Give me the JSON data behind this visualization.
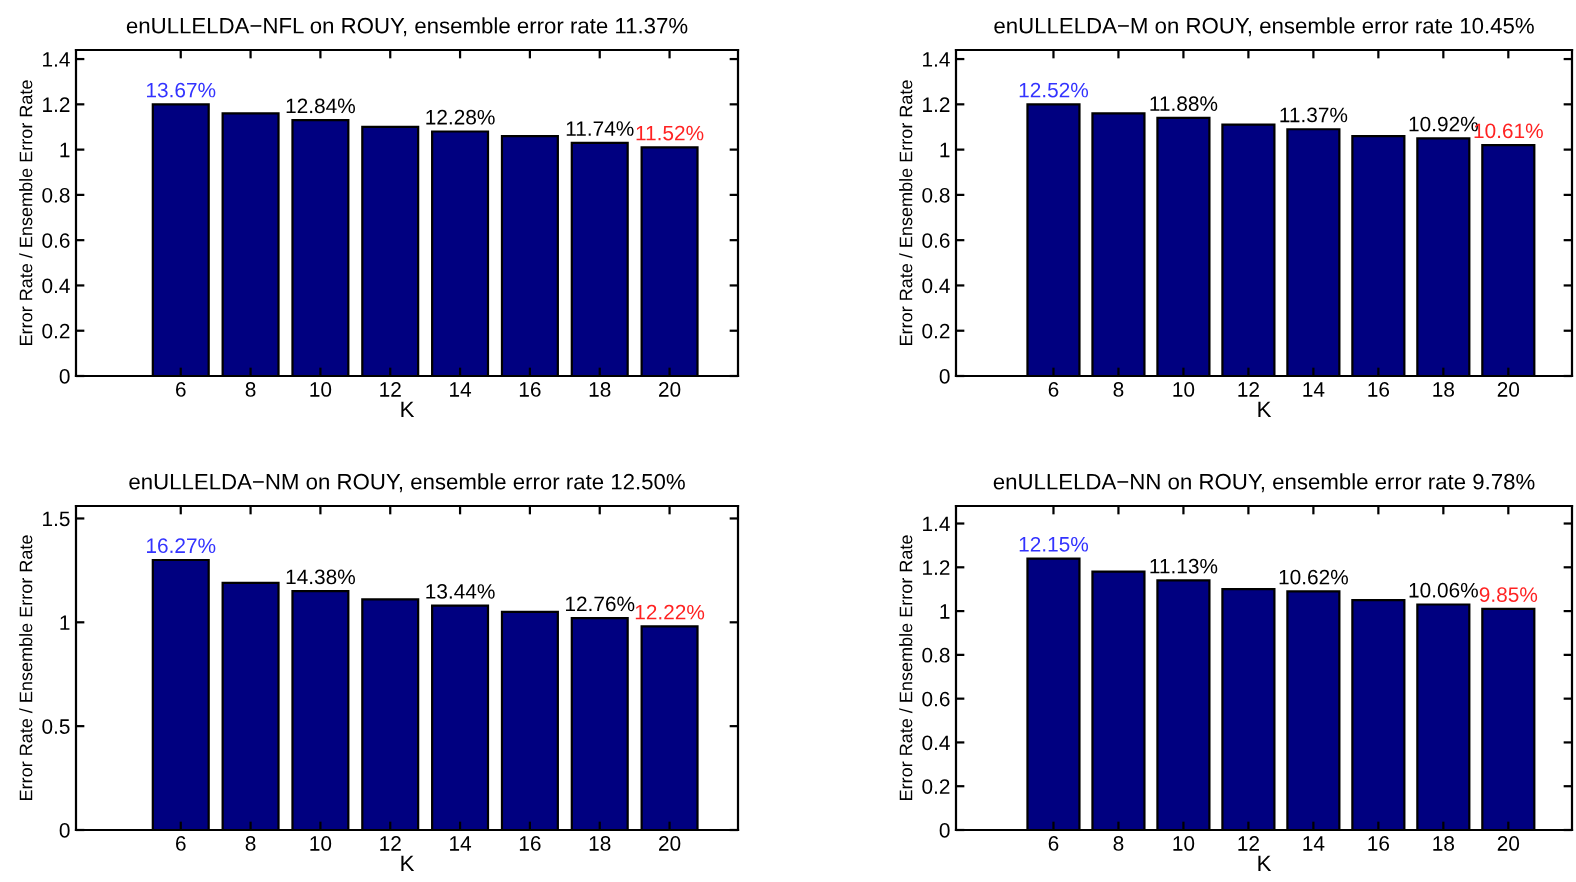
{
  "chart_data": [
    {
      "type": "bar",
      "title": "enULLELDA−NFL on ROUY, ensemble error rate 11.37%",
      "xlabel": "K",
      "ylabel": "Error Rate / Ensemble Error Rate",
      "categories": [
        "6",
        "8",
        "10",
        "12",
        "14",
        "16",
        "18",
        "20"
      ],
      "color": "#000080",
      "values": [
        1.2,
        1.16,
        1.13,
        1.1,
        1.08,
        1.06,
        1.03,
        1.01
      ],
      "annotations": [
        {
          "text": "13.67%",
          "x": "6",
          "y": 1.2
        },
        {
          "text": "12.84%",
          "x": "10",
          "y": 1.13
        },
        {
          "text": "12.28%",
          "x": "14",
          "y": 1.08
        },
        {
          "text": "11.74%",
          "x": "18",
          "y": 1.03
        },
        {
          "text": "11.52%",
          "x": "20",
          "y": 1.01
        }
      ],
      "ylim": [
        0,
        1.44
      ],
      "yticks": [
        0,
        0.2,
        0.4,
        0.6,
        0.8,
        1,
        1.2,
        1.4
      ]
    },
    {
      "type": "bar",
      "title": "enULLELDA−M on ROUY, ensemble error rate 10.45%",
      "xlabel": "K",
      "ylabel": "Error Rate / Ensemble Error Rate",
      "categories": [
        "6",
        "8",
        "10",
        "12",
        "14",
        "16",
        "18",
        "20"
      ],
      "color": "#000080",
      "values": [
        1.2,
        1.16,
        1.14,
        1.11,
        1.09,
        1.06,
        1.05,
        1.02
      ],
      "annotations": [
        {
          "text": "12.52%",
          "x": "6",
          "y": 1.2
        },
        {
          "text": "11.88%",
          "x": "10",
          "y": 1.14
        },
        {
          "text": "11.37%",
          "x": "14",
          "y": 1.09
        },
        {
          "text": "10.92%",
          "x": "18",
          "y": 1.05
        },
        {
          "text": "10.61%",
          "x": "20",
          "y": 1.02
        }
      ],
      "ylim": [
        0,
        1.44
      ],
      "yticks": [
        0,
        0.2,
        0.4,
        0.6,
        0.8,
        1,
        1.2,
        1.4
      ]
    },
    {
      "type": "bar",
      "title": "enULLELDA−NM on ROUY, ensemble error rate 12.50%",
      "xlabel": "K",
      "ylabel": "Error Rate / Ensemble Error Rate",
      "categories": [
        "6",
        "8",
        "10",
        "12",
        "14",
        "16",
        "18",
        "20"
      ],
      "color": "#000080",
      "values": [
        1.3,
        1.19,
        1.15,
        1.11,
        1.08,
        1.05,
        1.02,
        0.98
      ],
      "annotations": [
        {
          "text": "16.27%",
          "x": "6",
          "y": 1.3
        },
        {
          "text": "14.38%",
          "x": "10",
          "y": 1.15
        },
        {
          "text": "13.44%",
          "x": "14",
          "y": 1.08
        },
        {
          "text": "12.76%",
          "x": "18",
          "y": 1.02
        },
        {
          "text": "12.22%",
          "x": "20",
          "y": 0.98
        }
      ],
      "ylim": [
        0,
        1.56
      ],
      "yticks": [
        0,
        0.5,
        1,
        1.5
      ]
    },
    {
      "type": "bar",
      "title": "enULLELDA−NN on ROUY, ensemble error rate 9.78%",
      "xlabel": "K",
      "ylabel": "Error Rate / Ensemble Error Rate",
      "categories": [
        "6",
        "8",
        "10",
        "12",
        "14",
        "16",
        "18",
        "20"
      ],
      "color": "#000080",
      "values": [
        1.24,
        1.18,
        1.14,
        1.1,
        1.09,
        1.05,
        1.03,
        1.01
      ],
      "annotations": [
        {
          "text": "12.15%",
          "x": "6",
          "y": 1.24
        },
        {
          "text": "11.13%",
          "x": "10",
          "y": 1.14
        },
        {
          "text": "10.62%",
          "x": "14",
          "y": 1.09
        },
        {
          "text": "10.06%",
          "x": "18",
          "y": 1.03
        },
        {
          "text": "9.85%",
          "x": "20",
          "y": 1.01
        }
      ],
      "ylim": [
        0,
        1.48
      ],
      "yticks": [
        0,
        0.2,
        0.4,
        0.6,
        0.8,
        1,
        1.2,
        1.4
      ]
    }
  ]
}
